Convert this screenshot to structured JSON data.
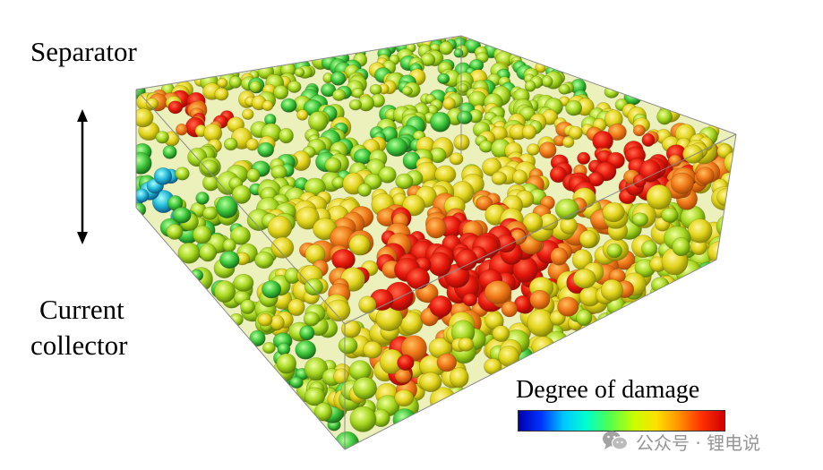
{
  "labels": {
    "separator": "Separator",
    "current": "Current",
    "collector": "collector"
  },
  "legend": {
    "title": "Degree of damage",
    "gradient_colors": [
      "#0000b0",
      "#0033ff",
      "#00c8ff",
      "#00ffcc",
      "#50ff50",
      "#c8ff00",
      "#ffe000",
      "#ff9000",
      "#ff3000",
      "#d00000"
    ]
  },
  "watermark": {
    "icon": "wechat-icon",
    "text": "公众号 · 锂电说"
  }
}
